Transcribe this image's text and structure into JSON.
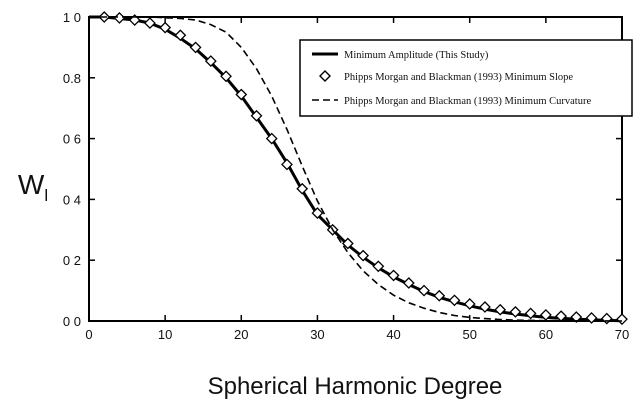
{
  "chart_data": {
    "type": "line",
    "xlabel": "Spherical Harmonic Degree",
    "ylabel": "W",
    "ylabel_sub": "l",
    "xlim": [
      0,
      70
    ],
    "ylim": [
      0,
      1
    ],
    "xticks": [
      0,
      10,
      20,
      30,
      40,
      50,
      60,
      70
    ],
    "xtick_labels": [
      "0",
      "10",
      "20",
      "30",
      "40",
      "50",
      "60",
      "70"
    ],
    "yticks": [
      0,
      0.2,
      0.4,
      0.6,
      0.8,
      1.0
    ],
    "ytick_labels": [
      "0 0",
      "0 2",
      "0 4",
      "0 6",
      "0.8",
      "1 0"
    ],
    "grid": false,
    "legend_position": "top-right",
    "series": [
      {
        "name": "Minimum Amplitude (This Study)",
        "style": "solid",
        "x": [
          0,
          2,
          4,
          6,
          8,
          10,
          12,
          14,
          16,
          18,
          20,
          22,
          24,
          26,
          28,
          30,
          32,
          34,
          36,
          38,
          40,
          42,
          44,
          46,
          48,
          50,
          52,
          54,
          56,
          58,
          60,
          62,
          64,
          66,
          68,
          70
        ],
        "y": [
          1.0,
          1.0,
          0.995,
          0.99,
          0.98,
          0.96,
          0.93,
          0.895,
          0.85,
          0.8,
          0.74,
          0.67,
          0.6,
          0.52,
          0.43,
          0.35,
          0.3,
          0.25,
          0.21,
          0.175,
          0.145,
          0.12,
          0.097,
          0.078,
          0.063,
          0.05,
          0.039,
          0.03,
          0.023,
          0.017,
          0.012,
          0.009,
          0.006,
          0.004,
          0.002,
          0.001
        ]
      },
      {
        "name": "Phipps Morgan and Blackman (1993) Minimum Slope",
        "style": "diamond-markers",
        "x": [
          2,
          4,
          6,
          8,
          10,
          12,
          14,
          16,
          18,
          20,
          22,
          24,
          26,
          28,
          30,
          32,
          34,
          36,
          38,
          40,
          42,
          44,
          46,
          48,
          50,
          52,
          54,
          56,
          58,
          60,
          62,
          64,
          66,
          68,
          70
        ],
        "y": [
          1.0,
          0.997,
          0.99,
          0.98,
          0.965,
          0.94,
          0.9,
          0.855,
          0.805,
          0.745,
          0.675,
          0.6,
          0.515,
          0.435,
          0.355,
          0.3,
          0.255,
          0.215,
          0.18,
          0.15,
          0.125,
          0.1,
          0.083,
          0.068,
          0.056,
          0.046,
          0.037,
          0.03,
          0.025,
          0.02,
          0.016,
          0.013,
          0.01,
          0.008,
          0.006
        ]
      },
      {
        "name": "Phipps Morgan and Blackman (1993) Minimum Curvature",
        "style": "dashed",
        "x": [
          0,
          4,
          8,
          12,
          14,
          16,
          18,
          20,
          22,
          24,
          26,
          28,
          30,
          32,
          34,
          36,
          38,
          40,
          42,
          44,
          46,
          48,
          50,
          52,
          54,
          56,
          58,
          60,
          64,
          70
        ],
        "y": [
          1.0,
          1.0,
          1.0,
          0.995,
          0.99,
          0.975,
          0.95,
          0.9,
          0.83,
          0.74,
          0.63,
          0.51,
          0.395,
          0.3,
          0.225,
          0.165,
          0.12,
          0.085,
          0.06,
          0.042,
          0.028,
          0.018,
          0.012,
          0.008,
          0.005,
          0.003,
          0.002,
          0.001,
          0.0005,
          0.0
        ]
      }
    ]
  }
}
